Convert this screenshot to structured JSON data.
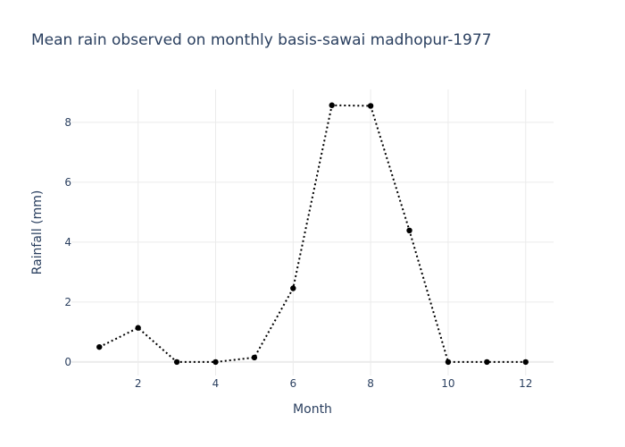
{
  "chart_data": {
    "type": "line",
    "title": "Mean rain observed on monthly basis-sawai madhopur-1977",
    "xlabel": "Month",
    "ylabel": "Rainfall (mm)",
    "x": [
      1,
      2,
      3,
      4,
      5,
      6,
      7,
      8,
      9,
      10,
      11,
      12
    ],
    "series": [
      {
        "values": [
          0.5,
          1.14,
          0.0,
          0.0,
          0.15,
          2.46,
          8.57,
          8.55,
          4.39,
          0.0,
          0.0,
          0.0
        ],
        "color": "#000000",
        "line_style": "dotted",
        "markers": true
      }
    ],
    "xlim": [
      0.28,
      12.72
    ],
    "ylim": [
      -0.45,
      9.1
    ],
    "x_ticks": [
      2,
      4,
      6,
      8,
      10,
      12
    ],
    "y_ticks": [
      0,
      2,
      4,
      6,
      8
    ],
    "grid": true,
    "legend": "none",
    "colors": {
      "text": "#2a3f5f",
      "grid": "#ebebeb",
      "background": "#ffffff"
    }
  }
}
